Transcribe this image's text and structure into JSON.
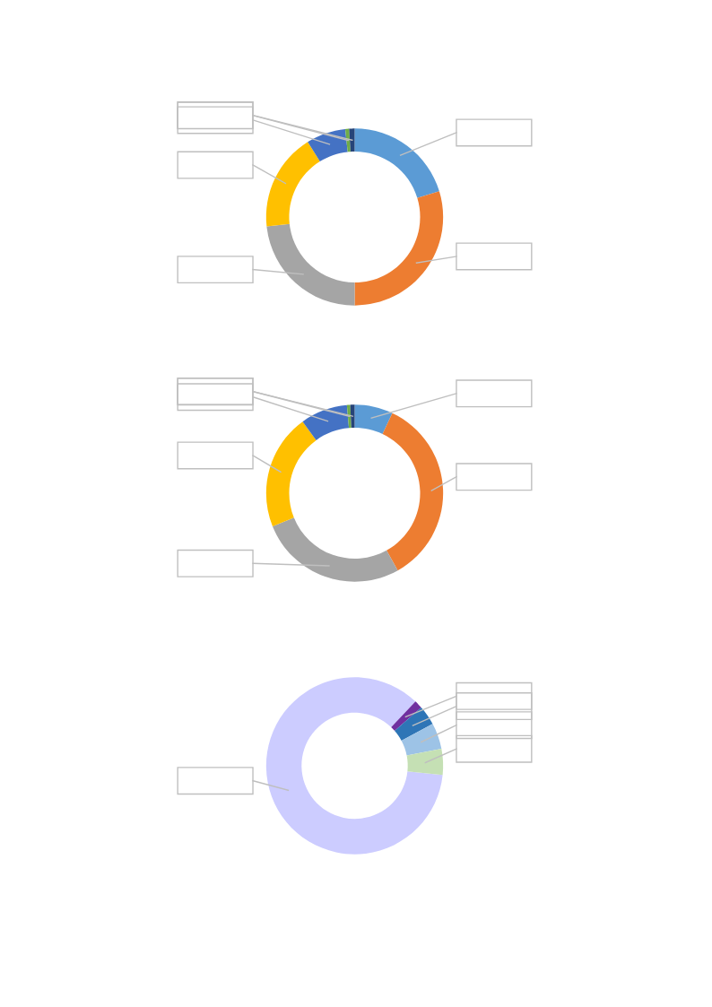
{
  "chart_data": [
    {
      "type": "donut",
      "categories": [
        null,
        null,
        null,
        null,
        null,
        null,
        null
      ],
      "values": [
        20.3,
        29.7,
        23.3,
        17.8,
        7.2,
        0.7,
        1.0
      ],
      "colors": [
        "#5b9bd5",
        "#ed7d31",
        "#a5a5a5",
        "#ffc000",
        "#4472c4",
        "#70ad47",
        "#264478"
      ]
    },
    {
      "type": "donut",
      "categories": [
        null,
        null,
        null,
        null,
        null,
        null,
        null
      ],
      "values": [
        7.0,
        34.9,
        27.0,
        21.1,
        8.6,
        0.6,
        0.8
      ],
      "colors": [
        "#5b9bd5",
        "#ed7d31",
        "#a5a5a5",
        "#ffc000",
        "#4472c4",
        "#70ad47",
        "#264478"
      ]
    },
    {
      "type": "donut",
      "categories": [
        null,
        null,
        null,
        null,
        null
      ],
      "values": [
        85.4,
        1.5,
        3.6,
        4.75,
        4.75
      ],
      "colors": [
        "#ccccff",
        "#7030a0",
        "#2e75b6",
        "#9dc3e6",
        "#c5e0b4"
      ]
    }
  ]
}
